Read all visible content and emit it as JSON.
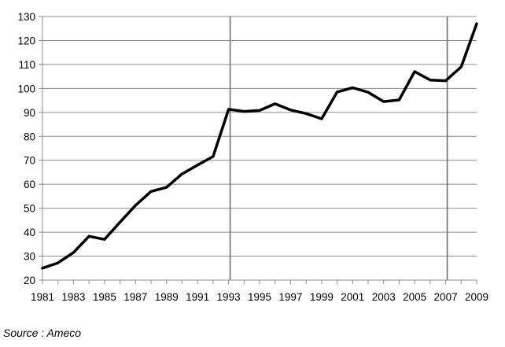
{
  "chart_data": {
    "type": "line",
    "x": [
      1981,
      1982,
      1983,
      1984,
      1985,
      1986,
      1987,
      1988,
      1989,
      1990,
      1991,
      1992,
      1993,
      1994,
      1995,
      1996,
      1997,
      1998,
      1999,
      2000,
      2001,
      2002,
      2003,
      2004,
      2005,
      2006,
      2007,
      2008,
      2009
    ],
    "series": [
      {
        "values": [
          25,
          27.2,
          31.5,
          38.3,
          37,
          44.2,
          51.2,
          57,
          58.7,
          64.3,
          68,
          71.6,
          91.3,
          90.4,
          90.8,
          93.6,
          91,
          89.5,
          87.3,
          98.5,
          100.3,
          98.4,
          94.5,
          95.2,
          107,
          103.5,
          103.2,
          109,
          127
        ]
      }
    ],
    "color": "#000000",
    "title": "",
    "xlabel": "",
    "ylabel": "",
    "ylim": [
      20,
      130
    ],
    "yticks": [
      "20",
      "30",
      "40",
      "50",
      "60",
      "70",
      "80",
      "90",
      "100",
      "110",
      "120",
      "130"
    ],
    "xticks": [
      "1981",
      "1983",
      "1985",
      "1987",
      "1989",
      "1991",
      "1993",
      "1995",
      "1997",
      "1999",
      "2001",
      "2003",
      "2005",
      "2007",
      "2009"
    ],
    "grid": "horizontal",
    "legend": "none",
    "vertical_markers": [
      1993,
      2007
    ]
  },
  "source": "Source : Ameco"
}
